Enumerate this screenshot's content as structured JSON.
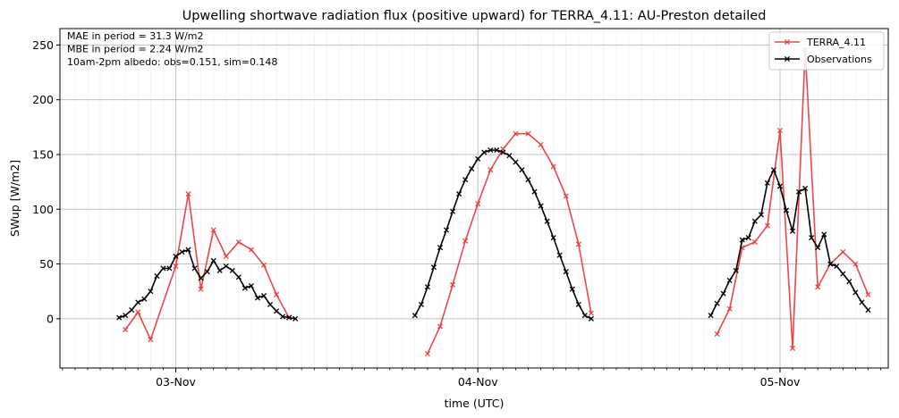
{
  "chart_data": {
    "type": "line",
    "title": "Upwelling shortwave radiation flux (positive upward) for TERRA_4.11: AU-Preston detailed",
    "xlabel": "time (UTC)",
    "ylabel": "SWup [W/m2]",
    "x_unit": "hours since 2023-11-03 00:00 UTC",
    "xlim": [
      -9.2,
      56.6
    ],
    "ylim": [
      -45,
      265
    ],
    "yticks": [
      0,
      50,
      100,
      150,
      200,
      250
    ],
    "xticks": [
      {
        "x": 0,
        "label": "03-Nov"
      },
      {
        "x": 24,
        "label": "04-Nov"
      },
      {
        "x": 48,
        "label": "05-Nov"
      }
    ],
    "grid": true,
    "legend_position": "top-right",
    "annotations": [
      "MAE in period = 31.3 W/m2",
      "MBE in period = 2.24 W/m2",
      "10am-2pm albedo: obs=0.151, sim=0.148"
    ],
    "series": [
      {
        "name": "TERRA_4.11",
        "color": "#e8383b",
        "points": [
          [
            -4,
            -10
          ],
          [
            -3,
            6
          ],
          [
            -2,
            -19
          ],
          [
            0,
            48
          ],
          [
            1,
            114
          ],
          [
            2,
            27
          ],
          [
            3,
            81
          ],
          [
            4,
            57
          ],
          [
            5,
            70
          ],
          [
            6,
            63
          ],
          [
            7,
            49
          ],
          [
            8,
            22
          ],
          [
            9,
            1
          ],
          [
            null,
            null
          ],
          [
            20,
            -32
          ],
          [
            21,
            -7
          ],
          [
            22,
            31
          ],
          [
            23,
            71
          ],
          [
            24,
            105
          ],
          [
            25,
            136
          ],
          [
            26,
            155
          ],
          [
            27,
            169
          ],
          [
            28,
            169
          ],
          [
            29,
            159
          ],
          [
            30,
            139
          ],
          [
            31,
            112
          ],
          [
            32,
            68
          ],
          [
            33,
            5
          ],
          [
            null,
            null
          ],
          [
            43,
            -14
          ],
          [
            44,
            9
          ],
          [
            45,
            65
          ],
          [
            46,
            70
          ],
          [
            47,
            85
          ],
          [
            48,
            172
          ],
          [
            49,
            -27
          ],
          [
            50,
            246
          ],
          [
            51,
            29
          ],
          [
            52,
            50
          ],
          [
            53,
            61
          ],
          [
            54,
            50
          ],
          [
            55,
            22
          ]
        ]
      },
      {
        "name": "Observations",
        "color": "#000000",
        "points": [
          [
            -4.5,
            1
          ],
          [
            -4,
            3
          ],
          [
            -3.5,
            8
          ],
          [
            -3,
            15
          ],
          [
            -2.5,
            18
          ],
          [
            -2,
            25
          ],
          [
            -1.5,
            39
          ],
          [
            -1,
            46
          ],
          [
            -0.5,
            46
          ],
          [
            0,
            57
          ],
          [
            0.5,
            61
          ],
          [
            1,
            63
          ],
          [
            1.5,
            46
          ],
          [
            2,
            37
          ],
          [
            2.5,
            43
          ],
          [
            3,
            53
          ],
          [
            3.5,
            44
          ],
          [
            4,
            48
          ],
          [
            4.5,
            44
          ],
          [
            5,
            38
          ],
          [
            5.5,
            28
          ],
          [
            6,
            30
          ],
          [
            6.5,
            19
          ],
          [
            7,
            21
          ],
          [
            7.5,
            13
          ],
          [
            8,
            7
          ],
          [
            8.5,
            2
          ],
          [
            9,
            1
          ],
          [
            9.5,
            0
          ],
          [
            null,
            null
          ],
          [
            19,
            3
          ],
          [
            19.5,
            13
          ],
          [
            20,
            29
          ],
          [
            20.5,
            47
          ],
          [
            21,
            65
          ],
          [
            21.5,
            81
          ],
          [
            22,
            98
          ],
          [
            22.5,
            114
          ],
          [
            23,
            127
          ],
          [
            23.5,
            137
          ],
          [
            24,
            146
          ],
          [
            24.5,
            152
          ],
          [
            25,
            154
          ],
          [
            25.5,
            154
          ],
          [
            26,
            152
          ],
          [
            26.5,
            149
          ],
          [
            27,
            143
          ],
          [
            27.5,
            136
          ],
          [
            28,
            127
          ],
          [
            28.5,
            116
          ],
          [
            29,
            103
          ],
          [
            29.5,
            89
          ],
          [
            30,
            74
          ],
          [
            30.5,
            58
          ],
          [
            31,
            43
          ],
          [
            31.5,
            27
          ],
          [
            32,
            13
          ],
          [
            32.5,
            3
          ],
          [
            33,
            0
          ],
          [
            null,
            null
          ],
          [
            42.5,
            3
          ],
          [
            43,
            14
          ],
          [
            43.5,
            23
          ],
          [
            44,
            35
          ],
          [
            44.5,
            44
          ],
          [
            45,
            72
          ],
          [
            45.5,
            74
          ],
          [
            46,
            89
          ],
          [
            46.5,
            95
          ],
          [
            47,
            124
          ],
          [
            47.5,
            136
          ],
          [
            48,
            121
          ],
          [
            48.5,
            99
          ],
          [
            49,
            80
          ],
          [
            49.5,
            116
          ],
          [
            50,
            119
          ],
          [
            50.5,
            74
          ],
          [
            51,
            65
          ],
          [
            51.5,
            77
          ],
          [
            52,
            50
          ],
          [
            52.5,
            48
          ],
          [
            53,
            41
          ],
          [
            53.5,
            34
          ],
          [
            54,
            24
          ],
          [
            54.5,
            15
          ],
          [
            55,
            8
          ]
        ]
      }
    ]
  }
}
